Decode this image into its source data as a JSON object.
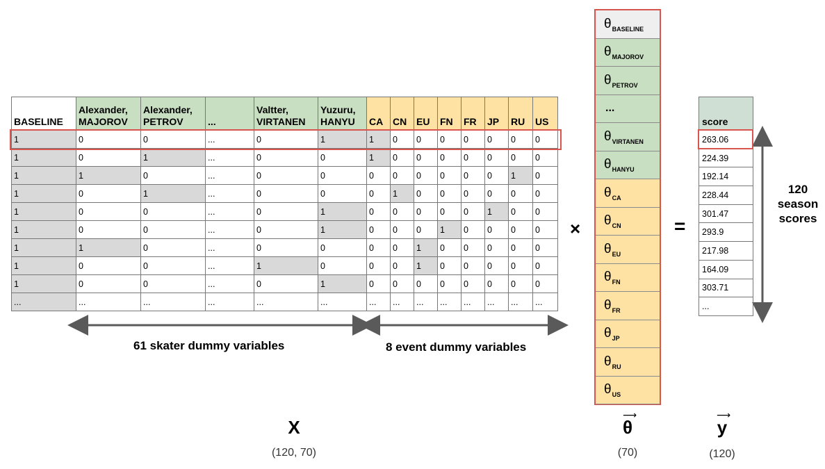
{
  "x_matrix": {
    "headers": [
      {
        "label": "BASELINE",
        "group": "base"
      },
      {
        "label": "Alexander, MAJOROV",
        "group": "skater"
      },
      {
        "label": "Alexander, PETROV",
        "group": "skater"
      },
      {
        "label": "...",
        "group": "skater"
      },
      {
        "label": "Valtter, VIRTANEN",
        "group": "skater"
      },
      {
        "label": "Yuzuru, HANYU",
        "group": "skater"
      },
      {
        "label": "CA",
        "group": "event"
      },
      {
        "label": "CN",
        "group": "event"
      },
      {
        "label": "EU",
        "group": "event"
      },
      {
        "label": "FN",
        "group": "event"
      },
      {
        "label": "FR",
        "group": "event"
      },
      {
        "label": "JP",
        "group": "event"
      },
      {
        "label": "RU",
        "group": "event"
      },
      {
        "label": "US",
        "group": "event"
      }
    ],
    "rows": [
      [
        "1",
        "0",
        "0",
        "...",
        "0",
        "1",
        "1",
        "0",
        "0",
        "0",
        "0",
        "0",
        "0",
        "0"
      ],
      [
        "1",
        "0",
        "1",
        "...",
        "0",
        "0",
        "1",
        "0",
        "0",
        "0",
        "0",
        "0",
        "0",
        "0"
      ],
      [
        "1",
        "1",
        "0",
        "...",
        "0",
        "0",
        "0",
        "0",
        "0",
        "0",
        "0",
        "0",
        "1",
        "0"
      ],
      [
        "1",
        "0",
        "1",
        "...",
        "0",
        "0",
        "0",
        "1",
        "0",
        "0",
        "0",
        "0",
        "0",
        "0"
      ],
      [
        "1",
        "0",
        "0",
        "...",
        "0",
        "1",
        "0",
        "0",
        "0",
        "0",
        "0",
        "1",
        "0",
        "0"
      ],
      [
        "1",
        "0",
        "0",
        "...",
        "0",
        "1",
        "0",
        "0",
        "0",
        "1",
        "0",
        "0",
        "0",
        "0"
      ],
      [
        "1",
        "1",
        "0",
        "...",
        "0",
        "0",
        "0",
        "0",
        "1",
        "0",
        "0",
        "0",
        "0",
        "0"
      ],
      [
        "1",
        "0",
        "0",
        "...",
        "1",
        "0",
        "0",
        "0",
        "1",
        "0",
        "0",
        "0",
        "0",
        "0"
      ],
      [
        "1",
        "0",
        "0",
        "...",
        "0",
        "1",
        "0",
        "0",
        "0",
        "0",
        "0",
        "0",
        "0",
        "0"
      ],
      [
        "...",
        "...",
        "...",
        "...",
        "...",
        "...",
        "...",
        "...",
        "...",
        "...",
        "...",
        "...",
        "...",
        "..."
      ]
    ],
    "skater_dummy_label": "61 skater dummy variables",
    "event_dummy_label": "8 event dummy variables",
    "name": "X",
    "shape": "(120, 70)"
  },
  "operators": {
    "multiply": "×",
    "equals": "="
  },
  "theta": {
    "symbol": "θ",
    "name": "θ",
    "shape": "(70)",
    "entries": [
      {
        "sub": "BASELINE",
        "group": "gray"
      },
      {
        "sub": "MAJOROV",
        "group": "green"
      },
      {
        "sub": "PETROV",
        "group": "green"
      },
      {
        "sub": "...",
        "group": "green",
        "ellipsis": true
      },
      {
        "sub": "VIRTANEN",
        "group": "green"
      },
      {
        "sub": "HANYU",
        "group": "green"
      },
      {
        "sub": "CA",
        "group": "yellow"
      },
      {
        "sub": "CN",
        "group": "yellow"
      },
      {
        "sub": "EU",
        "group": "yellow"
      },
      {
        "sub": "FN",
        "group": "yellow"
      },
      {
        "sub": "FR",
        "group": "yellow"
      },
      {
        "sub": "JP",
        "group": "yellow"
      },
      {
        "sub": "RU",
        "group": "yellow"
      },
      {
        "sub": "US",
        "group": "yellow"
      }
    ]
  },
  "scores": {
    "header": "score",
    "values": [
      "263.06",
      "224.39",
      "192.14",
      "228.44",
      "301.47",
      "293.9",
      "217.98",
      "164.09",
      "303.71",
      "..."
    ],
    "name": "y",
    "shape": "(120)",
    "count_label_line1": "120",
    "count_label_line2": "season",
    "count_label_line3": "scores"
  },
  "colors": {
    "skater_header": "#c9dfc2",
    "event_header": "#fde2a4",
    "one_cell": "#d9d9d9",
    "highlight": "#d9534f",
    "arrow": "#5a5a5a"
  }
}
